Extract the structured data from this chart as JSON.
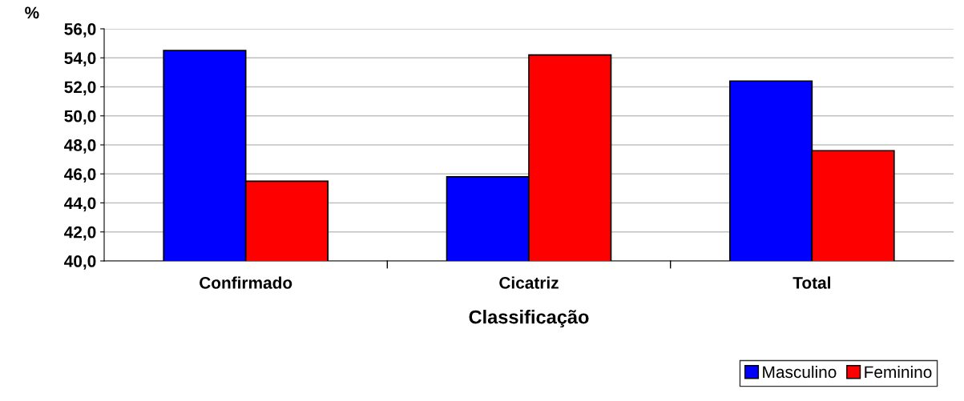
{
  "chart_data": {
    "type": "bar",
    "xlabel": "Classificação",
    "ylabel": "%",
    "categories": [
      "Confirmado",
      "Cicatriz",
      "Total"
    ],
    "series": [
      {
        "name": "Masculino",
        "color": "#0000ff",
        "values": [
          54.5,
          45.8,
          52.4
        ]
      },
      {
        "name": "Feminino",
        "color": "#ff0000",
        "values": [
          45.5,
          54.2,
          47.6
        ]
      }
    ],
    "ylim": [
      40,
      56
    ],
    "yticks": [
      {
        "value": 40,
        "label": "40,0"
      },
      {
        "value": 42,
        "label": "42,0"
      },
      {
        "value": 44,
        "label": "44,0"
      },
      {
        "value": 46,
        "label": "46,0"
      },
      {
        "value": 48,
        "label": "48,0"
      },
      {
        "value": 50,
        "label": "50,0"
      },
      {
        "value": 52,
        "label": "52,0"
      },
      {
        "value": 54,
        "label": "54,0"
      },
      {
        "value": 56,
        "label": "56,0"
      }
    ],
    "grid": "y",
    "legend": "bottom right"
  }
}
